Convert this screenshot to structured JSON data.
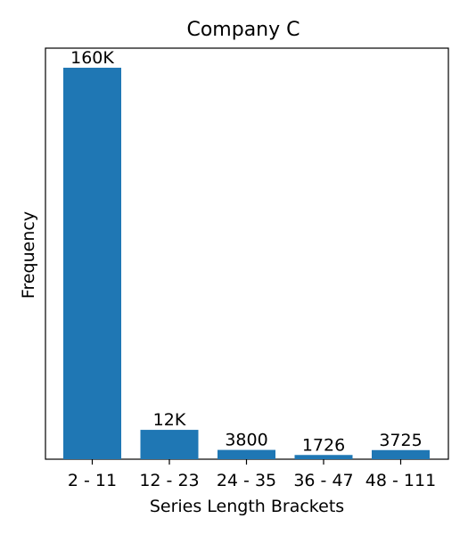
{
  "chart_data": {
    "type": "bar",
    "title": "Company C",
    "xlabel": "Series Length Brackets",
    "ylabel": "Frequency",
    "categories": [
      "2 - 11",
      "12 - 23",
      "24 - 35",
      "36 - 47",
      "48 - 111"
    ],
    "values": [
      160000,
      12000,
      3800,
      1726,
      3725
    ],
    "data_labels": [
      "160K",
      "12K",
      "3800",
      "1726",
      "3725"
    ],
    "ylim": [
      0,
      168000
    ],
    "y_ticks_visible": false,
    "grid": false,
    "legend": "none",
    "bar_color": "#1f77b4"
  }
}
